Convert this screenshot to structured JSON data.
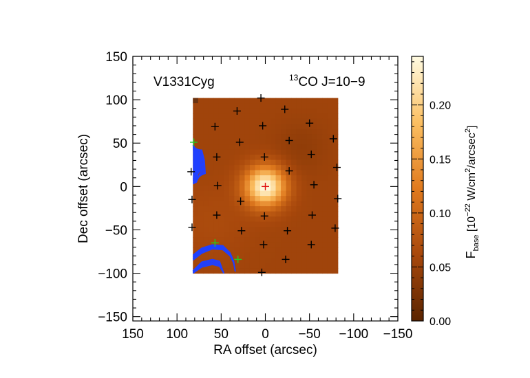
{
  "chart_data": {
    "type": "heatmap",
    "title": "",
    "object_label": "V1331Cyg",
    "line_label": {
      "sup": "13",
      "main": "CO J=10−9"
    },
    "xlabel": "RA offset (arcsec)",
    "ylabel": "Dec offset (arcsec)",
    "xlim": [
      150,
      -150
    ],
    "ylim": [
      -155,
      150
    ],
    "xticks": [
      150,
      100,
      50,
      0,
      -50,
      -100,
      -150
    ],
    "xtick_labels": [
      "150",
      "100",
      "50",
      "0",
      "−50",
      "−100",
      "−150"
    ],
    "yticks": [
      150,
      100,
      50,
      0,
      -50,
      -100,
      -150
    ],
    "ytick_labels": [
      "150",
      "100",
      "50",
      "0",
      "−50",
      "−100",
      "−150"
    ],
    "map_extent": {
      "ra": [
        82,
        -82
      ],
      "dec": [
        -100,
        102
      ]
    },
    "colorbar": {
      "label_main": "F",
      "label_sub": "base",
      "label_unit": " [10",
      "label_exp": "−22",
      "label_rest": " W/cm",
      "label_exp2": "2",
      "label_rest2": "/arcsec",
      "label_exp3": "2",
      "label_close": "]",
      "min": 0.0,
      "max": 0.245,
      "ticks": [
        0.0,
        0.05,
        0.1,
        0.15,
        0.2
      ],
      "tick_labels": [
        "0.00",
        "0.05",
        "0.10",
        "0.15",
        "0.20"
      ]
    },
    "peak": {
      "ra": 0,
      "dec": 0,
      "value": 0.245
    },
    "background_level": 0.055,
    "spaxels_black": [
      [
        5,
        102
      ],
      [
        -22,
        89
      ],
      [
        32,
        87
      ],
      [
        -50,
        73
      ],
      [
        57,
        69
      ],
      [
        3,
        70
      ],
      [
        -77,
        55
      ],
      [
        29,
        51
      ],
      [
        -27,
        53
      ],
      [
        55,
        34
      ],
      [
        1,
        34
      ],
      [
        -52,
        37
      ],
      [
        84,
        17
      ],
      [
        -27,
        18
      ],
      [
        -81,
        22
      ],
      [
        54,
        1
      ],
      [
        -55,
        2
      ],
      [
        83,
        -15
      ],
      [
        28,
        -17
      ],
      [
        -82,
        -14
      ],
      [
        55,
        -33
      ],
      [
        1,
        -34
      ],
      [
        -53,
        -33
      ],
      [
        83,
        -47
      ],
      [
        -79,
        -48
      ],
      [
        27,
        -51
      ],
      [
        -25,
        -51
      ],
      [
        2,
        -67
      ],
      [
        -52,
        -67
      ],
      [
        -23,
        -84
      ],
      [
        4,
        -99
      ]
    ],
    "spaxels_green": [
      [
        81,
        51
      ],
      [
        57,
        -65
      ],
      [
        31,
        -84
      ]
    ],
    "spaxel_red": [
      [
        0,
        0
      ]
    ],
    "contour_color": "#2040ff",
    "marker_color": "#000000"
  }
}
